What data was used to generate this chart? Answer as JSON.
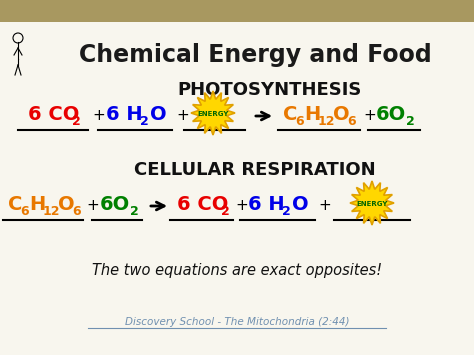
{
  "title": "Chemical Energy and Food",
  "photosynthesis_label": "PHOTOSYNTHESIS",
  "cellular_label": "CELLULAR RESPIRATION",
  "bottom_text": "The two equations are exact opposites!",
  "footer": "Discovery School - The Mitochondria (2:44)",
  "bg_color": "#f8f6ee",
  "header_color": "#a89860",
  "colors": {
    "red": "#e80000",
    "blue": "#0000e8",
    "orange": "#e87800",
    "green": "#008000",
    "black": "#111111"
  },
  "figsize": [
    4.74,
    3.55
  ],
  "dpi": 100
}
